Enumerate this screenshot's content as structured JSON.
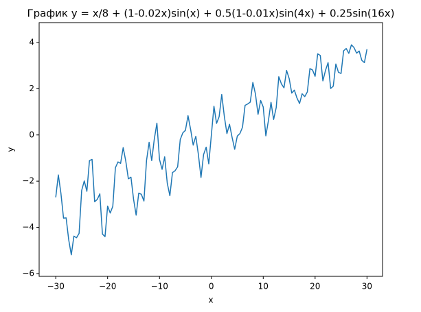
{
  "chart_data": {
    "type": "line",
    "title": "График y = x/8 + (1-0.02x)sin(x) + 0.5(1-0.01x)sin(4x) + 0.25sin(16x)",
    "x_label": "x",
    "y_label": "y",
    "color": "#1f77b4",
    "x": [
      -30,
      -29.5,
      -29,
      -28.5,
      -28,
      -27.5,
      -27,
      -26.5,
      -26,
      -25.5,
      -25,
      -24.5,
      -24,
      -23.5,
      -23,
      -22.5,
      -22,
      -21.5,
      -21,
      -20.5,
      -20,
      -19.5,
      -19,
      -18.5,
      -18,
      -17.5,
      -17,
      -16.5,
      -16,
      -15.5,
      -15,
      -14.5,
      -14,
      -13.5,
      -13,
      -12.5,
      -12,
      -11.5,
      -11,
      -10.5,
      -10,
      -9.5,
      -9,
      -8.5,
      -8,
      -7.5,
      -7,
      -6.5,
      -6,
      -5.5,
      -5,
      -4.5,
      -4,
      -3.5,
      -3,
      -2.5,
      -2,
      -1.5,
      -1,
      -0.5,
      0,
      0.5,
      1,
      1.5,
      2,
      2.5,
      3,
      3.5,
      4,
      4.5,
      5,
      5.5,
      6,
      6.5,
      7,
      7.5,
      8,
      8.5,
      9,
      9.5,
      10,
      10.5,
      11,
      11.5,
      12,
      12.5,
      13,
      13.5,
      14,
      14.5,
      15,
      15.5,
      16,
      16.5,
      17,
      17.5,
      18,
      18.5,
      19,
      19.5,
      20,
      20.5,
      21,
      21.5,
      22,
      22.5,
      23,
      23.5,
      24,
      24.5,
      25,
      25.5,
      26,
      26.5,
      27,
      27.5,
      28,
      28.5,
      29,
      29.5,
      30
    ],
    "values": [
      -2.7,
      -1.73,
      -2.53,
      -3.6,
      -3.59,
      -4.54,
      -5.19,
      -4.38,
      -4.45,
      -4.26,
      -2.4,
      -1.99,
      -2.44,
      -1.11,
      -1.06,
      -2.89,
      -2.79,
      -2.55,
      -4.29,
      -4.4,
      -3.08,
      -3.38,
      -3.09,
      -1.42,
      -1.17,
      -1.23,
      -0.55,
      -1.13,
      -1.9,
      -1.83,
      -2.78,
      -3.47,
      -2.52,
      -2.57,
      -2.86,
      -1.11,
      -0.32,
      -1.11,
      -0.18,
      0.51,
      -1.06,
      -1.49,
      -0.95,
      -2.09,
      -2.63,
      -1.63,
      -1.55,
      -1.38,
      -0.2,
      0.09,
      0.2,
      0.83,
      0.24,
      -0.44,
      -0.06,
      -0.85,
      -1.84,
      -0.85,
      -0.53,
      -1.25,
      0,
      1.24,
      0.5,
      0.79,
      1.75,
      0.8,
      0.06,
      0.46,
      -0.11,
      -0.62,
      -0.05,
      0.06,
      0.33,
      1.28,
      1.34,
      1.42,
      2.27,
      1.77,
      0.89,
      1.49,
      1.21,
      -0.04,
      0.62,
      1.41,
      0.67,
      1.18,
      2.52,
      2.21,
      2.04,
      2.79,
      2.44,
      1.81,
      1.94,
      1.6,
      1.36,
      1.78,
      1.66,
      1.86,
      2.87,
      2.81,
      2.54,
      3.51,
      3.44,
      2.34,
      2.79,
      3.13,
      2.01,
      2.11,
      3.07,
      2.71,
      2.66,
      3.64,
      3.74,
      3.53,
      3.9,
      3.78,
      3.54,
      3.63,
      3.23,
      3.13,
      3.71
    ],
    "xlim": [
      -33.2,
      33
    ],
    "xticks": [
      {
        "value": -30,
        "label": "−30"
      },
      {
        "value": -20,
        "label": "−20"
      },
      {
        "value": -10,
        "label": "−10"
      },
      0,
      10,
      20,
      30
    ],
    "ylim": [
      -6.12,
      4.86
    ],
    "yticks": [
      {
        "value": -6,
        "label": "−6"
      },
      {
        "value": -4,
        "label": "−4"
      },
      {
        "value": -2,
        "label": "−2"
      },
      0,
      2,
      4
    ],
    "grid": false
  }
}
